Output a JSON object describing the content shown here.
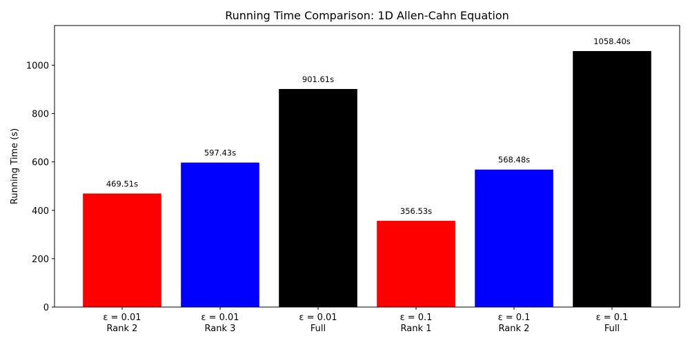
{
  "chart_data": {
    "type": "bar",
    "title": "Running Time Comparison: 1D Allen-Cahn Equation",
    "y_label": "Running Time (s)",
    "categories": [
      "ε = 0.01\nRank 2",
      "ε = 0.01\nRank 3",
      "ε = 0.01\nFull",
      "ε = 0.1\nRank 1",
      "ε = 0.1\nRank 2",
      "ε = 0.1\nFull"
    ],
    "values": [
      469.51,
      597.43,
      901.61,
      356.53,
      568.48,
      1058.4
    ],
    "value_labels": [
      "469.51s",
      "597.43s",
      "901.61s",
      "356.53s",
      "568.48s",
      "1058.40s"
    ],
    "colors": [
      "#ff0000",
      "#0000ff",
      "#000000",
      "#ff0000",
      "#0000ff",
      "#000000"
    ],
    "ylim": [
      0,
      1164
    ],
    "yticks": [
      0,
      200,
      400,
      600,
      800,
      1000
    ],
    "grid": false
  }
}
